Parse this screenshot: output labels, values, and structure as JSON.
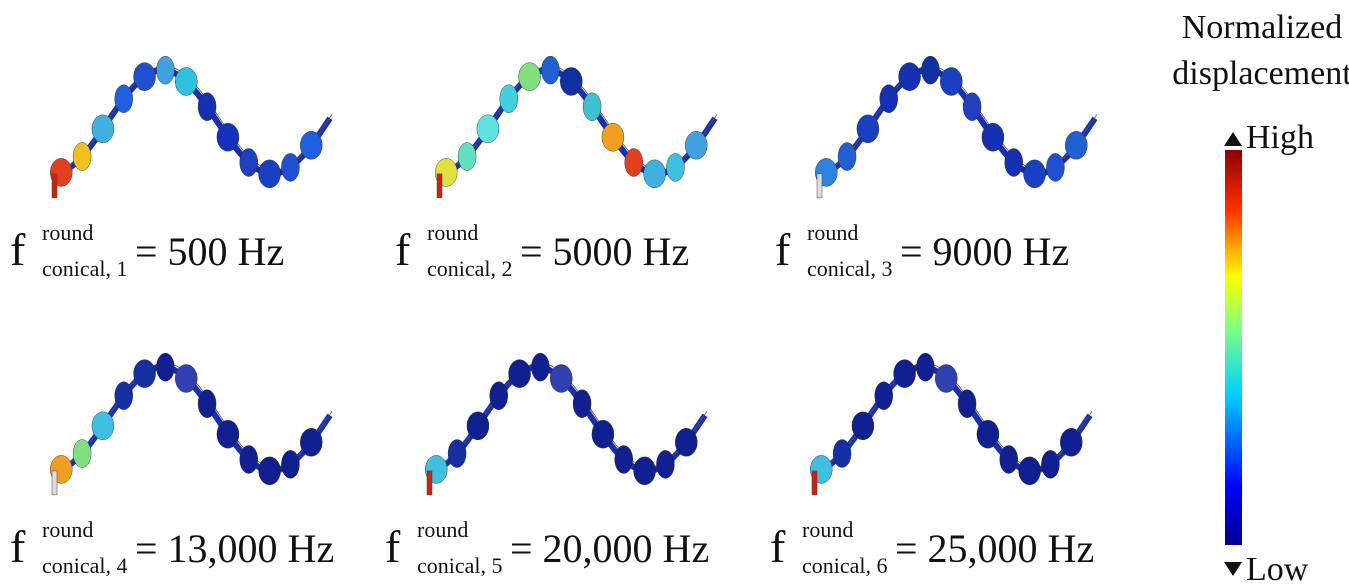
{
  "colorbar": {
    "title_lines": [
      "Normalized",
      "displacement"
    ],
    "high": "High",
    "low": "Low"
  },
  "panels": [
    {
      "symbol": "f",
      "superscript": "round",
      "subscript": "conical, 1",
      "rhs": "= 500 Hz"
    },
    {
      "symbol": "f",
      "superscript": "round",
      "subscript": "conical, 2",
      "rhs": "= 5000 Hz"
    },
    {
      "symbol": "f",
      "superscript": "round",
      "subscript": "conical, 3",
      "rhs": "= 9000 Hz"
    },
    {
      "symbol": "f",
      "superscript": "round",
      "subscript": "conical, 4",
      "rhs": "= 13,000 Hz"
    },
    {
      "symbol": "f",
      "superscript": "round",
      "subscript": "conical, 5",
      "rhs": "= 20,000 Hz"
    },
    {
      "symbol": "f",
      "superscript": "round",
      "subscript": "conical, 6",
      "rhs": "= 25,000 Hz"
    }
  ]
}
